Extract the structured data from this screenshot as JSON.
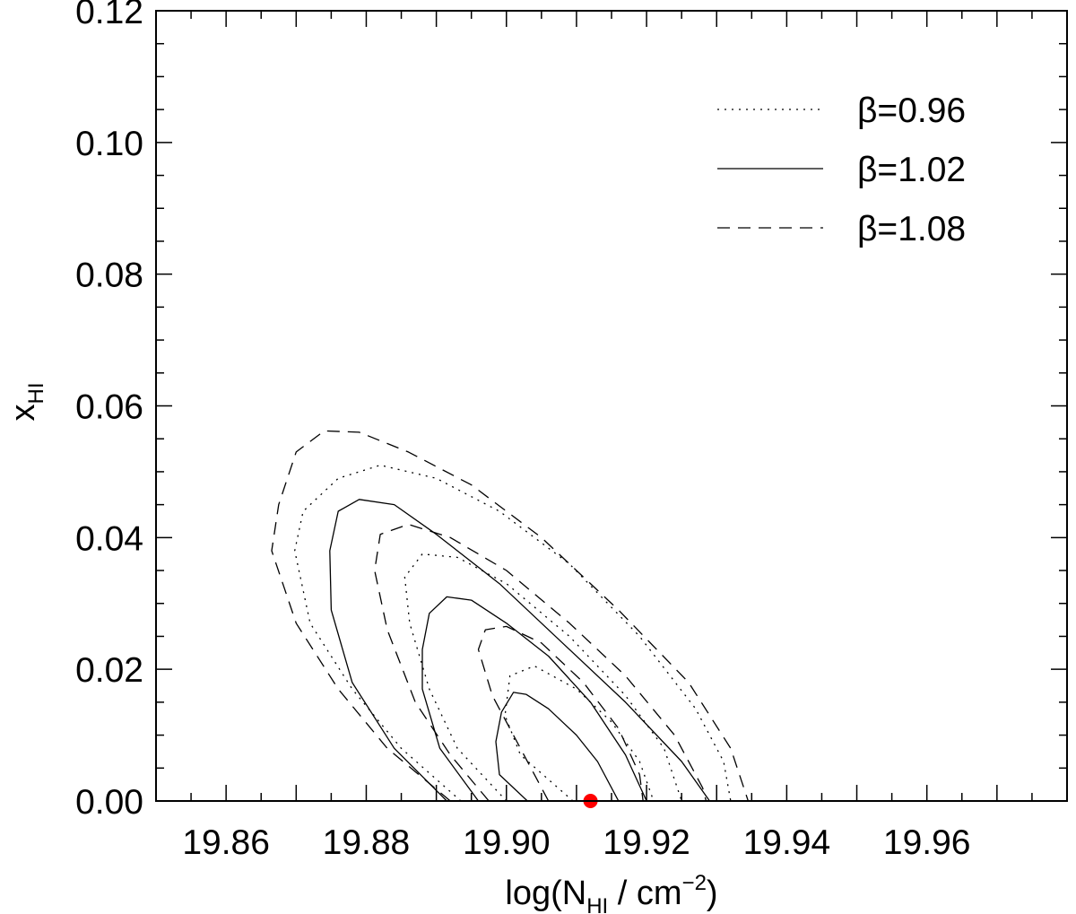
{
  "chart_data": {
    "type": "contour",
    "title": "",
    "xlabel": {
      "main": "log(N",
      "sub": "HI",
      "mid": " / cm",
      "sup": "−2",
      "end": ")"
    },
    "ylabel": {
      "main": "x",
      "sub": "HI"
    },
    "xlim": [
      19.85,
      19.98
    ],
    "ylim": [
      0.0,
      0.12
    ],
    "xticks": [
      19.86,
      19.88,
      19.9,
      19.92,
      19.94,
      19.96
    ],
    "xtick_labels": [
      "19.86",
      "19.88",
      "19.90",
      "19.92",
      "19.94",
      "19.96"
    ],
    "yticks": [
      0.0,
      0.02,
      0.04,
      0.06,
      0.08,
      0.1,
      0.12
    ],
    "ytick_labels": [
      "0.00",
      "0.02",
      "0.04",
      "0.06",
      "0.08",
      "0.10",
      "0.12"
    ],
    "grid": false,
    "legend_position": "top-right",
    "legend": [
      {
        "label": "β=0.96",
        "style": "dotted"
      },
      {
        "label": "β=1.02",
        "style": "solid"
      },
      {
        "label": "β=1.08",
        "style": "dashed"
      }
    ],
    "series": [
      {
        "style": "solid",
        "contours": [
          [
            [
              19.903,
              0.0
            ],
            [
              19.899,
              0.004
            ],
            [
              19.8985,
              0.009
            ],
            [
              19.8993,
              0.0135
            ],
            [
              19.901,
              0.0165
            ],
            [
              19.9028,
              0.0162
            ],
            [
              19.906,
              0.014
            ],
            [
              19.91,
              0.01
            ],
            [
              19.913,
              0.006
            ],
            [
              19.916,
              0.0
            ],
            [
              19.903,
              0.0
            ]
          ],
          [
            [
              19.896,
              0.0
            ],
            [
              19.8905,
              0.008
            ],
            [
              19.888,
              0.017
            ],
            [
              19.888,
              0.023
            ],
            [
              19.889,
              0.0285
            ],
            [
              19.8915,
              0.031
            ],
            [
              19.895,
              0.0305
            ],
            [
              19.9,
              0.027
            ],
            [
              19.906,
              0.022
            ],
            [
              19.912,
              0.015
            ],
            [
              19.917,
              0.007
            ],
            [
              19.92,
              0.0
            ],
            [
              19.896,
              0.0
            ]
          ],
          [
            [
              19.8915,
              0.0
            ],
            [
              19.884,
              0.008
            ],
            [
              19.878,
              0.018
            ],
            [
              19.875,
              0.029
            ],
            [
              19.8748,
              0.038
            ],
            [
              19.876,
              0.044
            ],
            [
              19.879,
              0.0458
            ],
            [
              19.884,
              0.045
            ],
            [
              19.89,
              0.0405
            ],
            [
              19.899,
              0.033
            ],
            [
              19.908,
              0.024
            ],
            [
              19.917,
              0.015
            ],
            [
              19.925,
              0.006
            ],
            [
              19.929,
              0.0
            ],
            [
              19.8915,
              0.0
            ]
          ]
        ]
      },
      {
        "style": "dotted",
        "contours": [
          [
            [
              19.9095,
              0.0
            ],
            [
              19.902,
              0.007
            ],
            [
              19.8998,
              0.013
            ],
            [
              19.9005,
              0.019
            ],
            [
              19.904,
              0.0205
            ],
            [
              19.91,
              0.017
            ],
            [
              19.915,
              0.012
            ],
            [
              19.919,
              0.006
            ],
            [
              19.921,
              0.0
            ],
            [
              19.9095,
              0.0
            ]
          ],
          [
            [
              19.9,
              0.0
            ],
            [
              19.893,
              0.008
            ],
            [
              19.889,
              0.017
            ],
            [
              19.8862,
              0.027
            ],
            [
              19.8855,
              0.034
            ],
            [
              19.888,
              0.0375
            ],
            [
              19.893,
              0.037
            ],
            [
              19.9,
              0.033
            ],
            [
              19.909,
              0.025
            ],
            [
              19.917,
              0.016
            ],
            [
              19.9225,
              0.008
            ],
            [
              19.925,
              0.0
            ],
            [
              19.9,
              0.0
            ]
          ],
          [
            [
              19.8935,
              0.0
            ],
            [
              19.885,
              0.008
            ],
            [
              19.878,
              0.017
            ],
            [
              19.872,
              0.027
            ],
            [
              19.8698,
              0.038
            ],
            [
              19.871,
              0.044
            ],
            [
              19.876,
              0.049
            ],
            [
              19.882,
              0.051
            ],
            [
              19.89,
              0.049
            ],
            [
              19.899,
              0.044
            ],
            [
              19.909,
              0.036
            ],
            [
              19.919,
              0.025
            ],
            [
              19.927,
              0.014
            ],
            [
              19.931,
              0.006
            ],
            [
              19.932,
              0.0
            ],
            [
              19.8935,
              0.0
            ]
          ]
        ]
      },
      {
        "style": "dashed",
        "contours": [
          [
            [
              19.906,
              0.0
            ],
            [
              19.902,
              0.008
            ],
            [
              19.898,
              0.016
            ],
            [
              19.896,
              0.023
            ],
            [
              19.897,
              0.026
            ],
            [
              19.9,
              0.0265
            ],
            [
              19.905,
              0.024
            ],
            [
              19.911,
              0.018
            ],
            [
              19.916,
              0.011
            ],
            [
              19.919,
              0.004
            ],
            [
              19.9195,
              0.0
            ],
            [
              19.906,
              0.0
            ]
          ],
          [
            [
              19.8975,
              0.0
            ],
            [
              19.892,
              0.007
            ],
            [
              19.887,
              0.015
            ],
            [
              19.883,
              0.026
            ],
            [
              19.8812,
              0.035
            ],
            [
              19.882,
              0.0405
            ],
            [
              19.886,
              0.042
            ],
            [
              19.892,
              0.04
            ],
            [
              19.9,
              0.035
            ],
            [
              19.909,
              0.027
            ],
            [
              19.917,
              0.019
            ],
            [
              19.924,
              0.01
            ],
            [
              19.928,
              0.002
            ],
            [
              19.9285,
              0.0
            ],
            [
              19.8975,
              0.0
            ]
          ],
          [
            [
              19.892,
              0.0
            ],
            [
              19.883,
              0.008
            ],
            [
              19.876,
              0.017
            ],
            [
              19.87,
              0.027
            ],
            [
              19.8665,
              0.038
            ],
            [
              19.8675,
              0.045
            ],
            [
              19.87,
              0.053
            ],
            [
              19.874,
              0.0562
            ],
            [
              19.879,
              0.056
            ],
            [
              19.886,
              0.053
            ],
            [
              19.895,
              0.048
            ],
            [
              19.905,
              0.04
            ],
            [
              19.916,
              0.029
            ],
            [
              19.926,
              0.018
            ],
            [
              19.932,
              0.008
            ],
            [
              19.9345,
              0.0
            ],
            [
              19.892,
              0.0
            ]
          ]
        ]
      }
    ],
    "points": [
      {
        "x": 19.912,
        "y": 0.0,
        "color": "#ff0000"
      }
    ]
  }
}
